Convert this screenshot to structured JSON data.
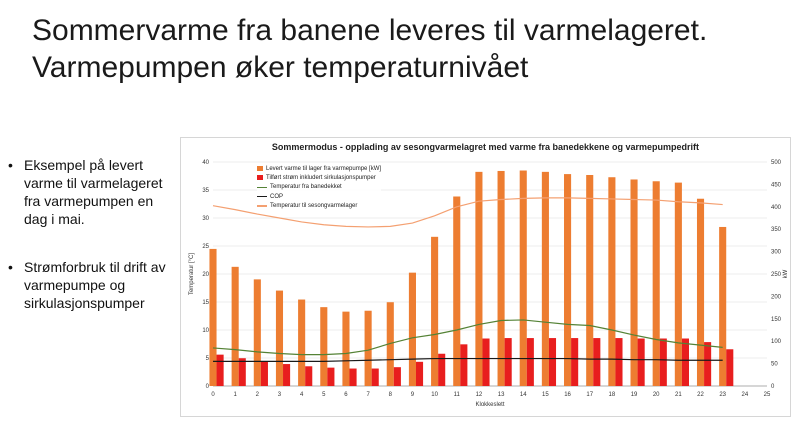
{
  "slide": {
    "title_lines": [
      "Sommervarme fra banene leveres til varmelageret.",
      "Varmepumpen øker temperaturnivået"
    ],
    "bullets": [
      "Eksempel på levert varme til varmelageret fra varmepumpen en dag i mai.",
      "Strømforbruk til drift av varmepumpe og sirkulasjonspumper"
    ]
  },
  "chart_data": {
    "type": "bar",
    "title": "Sommermodus - opplading av sesongvarmelagret med varme fra banedekkene og varmepumpedrift",
    "xlabel": "Klokkeslett",
    "ylabel": "Temperatur [°C]",
    "y2label": "kW",
    "x": [
      0,
      1,
      2,
      3,
      4,
      5,
      6,
      7,
      8,
      9,
      10,
      11,
      12,
      13,
      14,
      15,
      16,
      17,
      18,
      19,
      20,
      21,
      22,
      23
    ],
    "xlim": [
      0,
      25
    ],
    "xticks": [
      "0",
      "1",
      "2",
      "3",
      "4",
      "5",
      "6",
      "7",
      "8",
      "9",
      "10",
      "11",
      "12",
      "13",
      "14",
      "15",
      "16",
      "17",
      "18",
      "19",
      "20",
      "21",
      "22",
      "23",
      "24",
      "25"
    ],
    "ylim": [
      0,
      40
    ],
    "yticks": [
      "0",
      "5",
      "10",
      "15",
      "20",
      "25",
      "30",
      "35",
      "40"
    ],
    "y2lim": [
      0,
      500
    ],
    "y2ticks": [
      "0",
      "50",
      "100",
      "150",
      "200",
      "250",
      "300",
      "350",
      "400",
      "450",
      "500"
    ],
    "grid": true,
    "legend_position": "top-left",
    "series": [
      {
        "name": "Levert varme til lager fra varmepumpe [kW]",
        "kind": "bar",
        "axis": "right",
        "color": "#ed7d31",
        "values": [
          306,
          266,
          238,
          213,
          193,
          176,
          166,
          168,
          187,
          253,
          333,
          423,
          478,
          480,
          481,
          478,
          473,
          471,
          466,
          461,
          457,
          454,
          418,
          355
        ]
      },
      {
        "name": "Tilført strøm inkludert sirkulasjonspumper",
        "kind": "bar",
        "axis": "right",
        "color": "#e81e1e",
        "values": [
          70,
          62,
          55,
          49,
          44,
          41,
          39,
          39,
          42,
          54,
          72,
          93,
          106,
          107,
          107,
          107,
          107,
          107,
          107,
          106,
          106,
          106,
          98,
          82
        ]
      },
      {
        "name": "Temperatur fra banedekket",
        "kind": "line",
        "axis": "left",
        "color": "#548235",
        "values": [
          6.8,
          6.5,
          6.1,
          5.8,
          5.6,
          5.6,
          5.8,
          6.4,
          7.6,
          8.6,
          9.2,
          10,
          11,
          11.7,
          11.8,
          11.4,
          11,
          10.8,
          10,
          9.1,
          8.3,
          7.7,
          7.3,
          6.9
        ]
      },
      {
        "name": "COP",
        "kind": "line",
        "axis": "left",
        "color": "#1a1a1a",
        "values": [
          4.4,
          4.4,
          4.4,
          4.4,
          4.4,
          4.4,
          4.5,
          4.6,
          4.7,
          4.8,
          4.9,
          4.9,
          4.9,
          4.9,
          4.9,
          4.9,
          4.9,
          4.8,
          4.8,
          4.7,
          4.7,
          4.6,
          4.6,
          4.6
        ]
      },
      {
        "name": "Temperatur til sesongvarmelager",
        "kind": "line",
        "axis": "left",
        "color": "#f4a071",
        "values": [
          32.2,
          31.5,
          30.7,
          30,
          29.3,
          28.8,
          28.5,
          28.4,
          28.5,
          29.1,
          30.4,
          32,
          33,
          33.3,
          33.5,
          33.6,
          33.6,
          33.5,
          33.4,
          33.3,
          33.2,
          32.9,
          32.7,
          32.4
        ]
      }
    ]
  }
}
